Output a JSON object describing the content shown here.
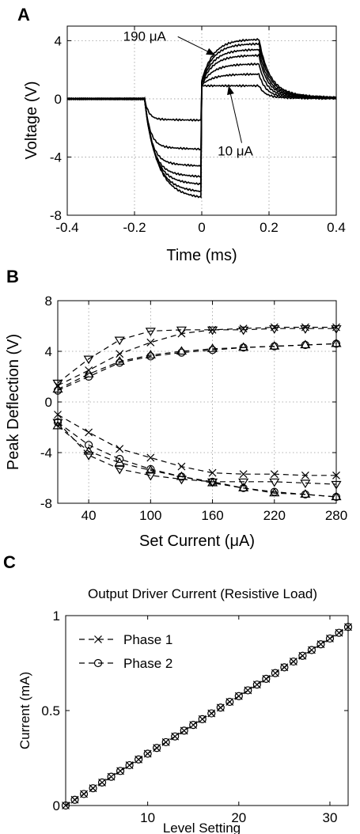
{
  "panel_labels": [
    "A",
    "B",
    "C"
  ],
  "chart_data": [
    {
      "type": "line",
      "panel": "A",
      "xlabel": "Time (ms)",
      "ylabel": "Voltage (V)",
      "xlim": [
        -0.4,
        0.4
      ],
      "ylim": [
        -8,
        5
      ],
      "xticks": [
        -0.4,
        -0.2,
        0,
        0.2,
        0.4
      ],
      "xtick_labels": [
        "-0.4",
        "-0.2",
        "0",
        "0.2",
        "0.4"
      ],
      "yticks": [
        -8,
        -4,
        0,
        4
      ],
      "ytick_labels": [
        "-8",
        "-4",
        "0",
        "4"
      ],
      "grid": true,
      "series": [
        {
          "neg": -1.4,
          "pos": 0.9
        },
        {
          "neg": -3.3,
          "pos": 1.7
        },
        {
          "neg": -4.4,
          "pos": 2.4
        },
        {
          "neg": -5.1,
          "pos": 3.0
        },
        {
          "neg": -5.6,
          "pos": 3.4
        },
        {
          "neg": -6.1,
          "pos": 3.8
        },
        {
          "neg": -6.5,
          "pos": 4.1
        }
      ],
      "annotations": [
        {
          "text": "190 μA",
          "x": -0.17,
          "y": 4.0,
          "points_to": [
            0.04,
            3.0
          ]
        },
        {
          "text": "10 μA",
          "x": 0.1,
          "y": -3.9,
          "points_to": [
            0.08,
            0.9
          ]
        }
      ]
    },
    {
      "type": "line",
      "panel": "B",
      "xlabel": "Set Current (μA)",
      "ylabel": "Peak Deflection (V)",
      "xlim": [
        10,
        280
      ],
      "ylim": [
        -8,
        8
      ],
      "xticks": [
        40,
        100,
        160,
        220,
        280
      ],
      "xtick_labels": [
        "40",
        "100",
        "160",
        "220",
        "280"
      ],
      "yticks": [
        -8,
        -4,
        0,
        4,
        8
      ],
      "ytick_labels": [
        "-8",
        "-4",
        "0",
        "4",
        "8"
      ],
      "grid": true,
      "x": [
        10,
        40,
        70,
        100,
        130,
        160,
        190,
        220,
        250,
        280
      ],
      "series": [
        {
          "marker": "x",
          "values": [
            1.3,
            2.5,
            3.8,
            4.7,
            5.4,
            5.7,
            5.8,
            5.9,
            5.9,
            5.9
          ]
        },
        {
          "marker": "v",
          "values": [
            1.5,
            3.4,
            4.9,
            5.6,
            5.7,
            5.7,
            5.7,
            5.8,
            5.8,
            5.8
          ]
        },
        {
          "marker": "o",
          "values": [
            0.9,
            2.0,
            3.1,
            3.6,
            3.9,
            4.1,
            4.3,
            4.4,
            4.5,
            4.6
          ]
        },
        {
          "marker": "^",
          "values": [
            1.0,
            2.2,
            3.2,
            3.7,
            4.0,
            4.2,
            4.3,
            4.4,
            4.5,
            4.6
          ]
        },
        {
          "marker": "x",
          "values": [
            -1.0,
            -2.4,
            -3.7,
            -4.4,
            -5.1,
            -5.6,
            -5.7,
            -5.7,
            -5.8,
            -5.8
          ]
        },
        {
          "marker": "v",
          "values": [
            -1.6,
            -4.2,
            -5.3,
            -5.8,
            -6.1,
            -6.3,
            -6.3,
            -6.3,
            -6.4,
            -6.5
          ]
        },
        {
          "marker": "o",
          "values": [
            -1.6,
            -3.4,
            -4.5,
            -5.3,
            -5.9,
            -6.3,
            -6.8,
            -7.1,
            -7.3,
            -7.5
          ]
        },
        {
          "marker": "^",
          "values": [
            -1.9,
            -3.9,
            -4.8,
            -5.4,
            -5.9,
            -6.4,
            -6.8,
            -7.2,
            -7.3,
            -7.5
          ]
        }
      ]
    },
    {
      "type": "line",
      "panel": "C",
      "title": "Output Driver Current (Resistive Load)",
      "xlabel": "Level Setting",
      "ylabel": "Current (mA)",
      "xlim": [
        1,
        32
      ],
      "ylim": [
        0,
        1
      ],
      "xticks": [
        10,
        20,
        30
      ],
      "xtick_labels": [
        "10",
        "20",
        "30"
      ],
      "yticks": [
        0,
        0.5,
        1
      ],
      "ytick_labels": [
        "0",
        "0.5",
        "1"
      ],
      "grid": false,
      "legend_position": "top-left",
      "x_start": 1,
      "x_end": 32,
      "y_start": 0.0,
      "y_end": 0.94,
      "series": [
        {
          "name": "Phase 1",
          "marker": "x"
        },
        {
          "name": "Phase 2",
          "marker": "o"
        }
      ]
    }
  ]
}
